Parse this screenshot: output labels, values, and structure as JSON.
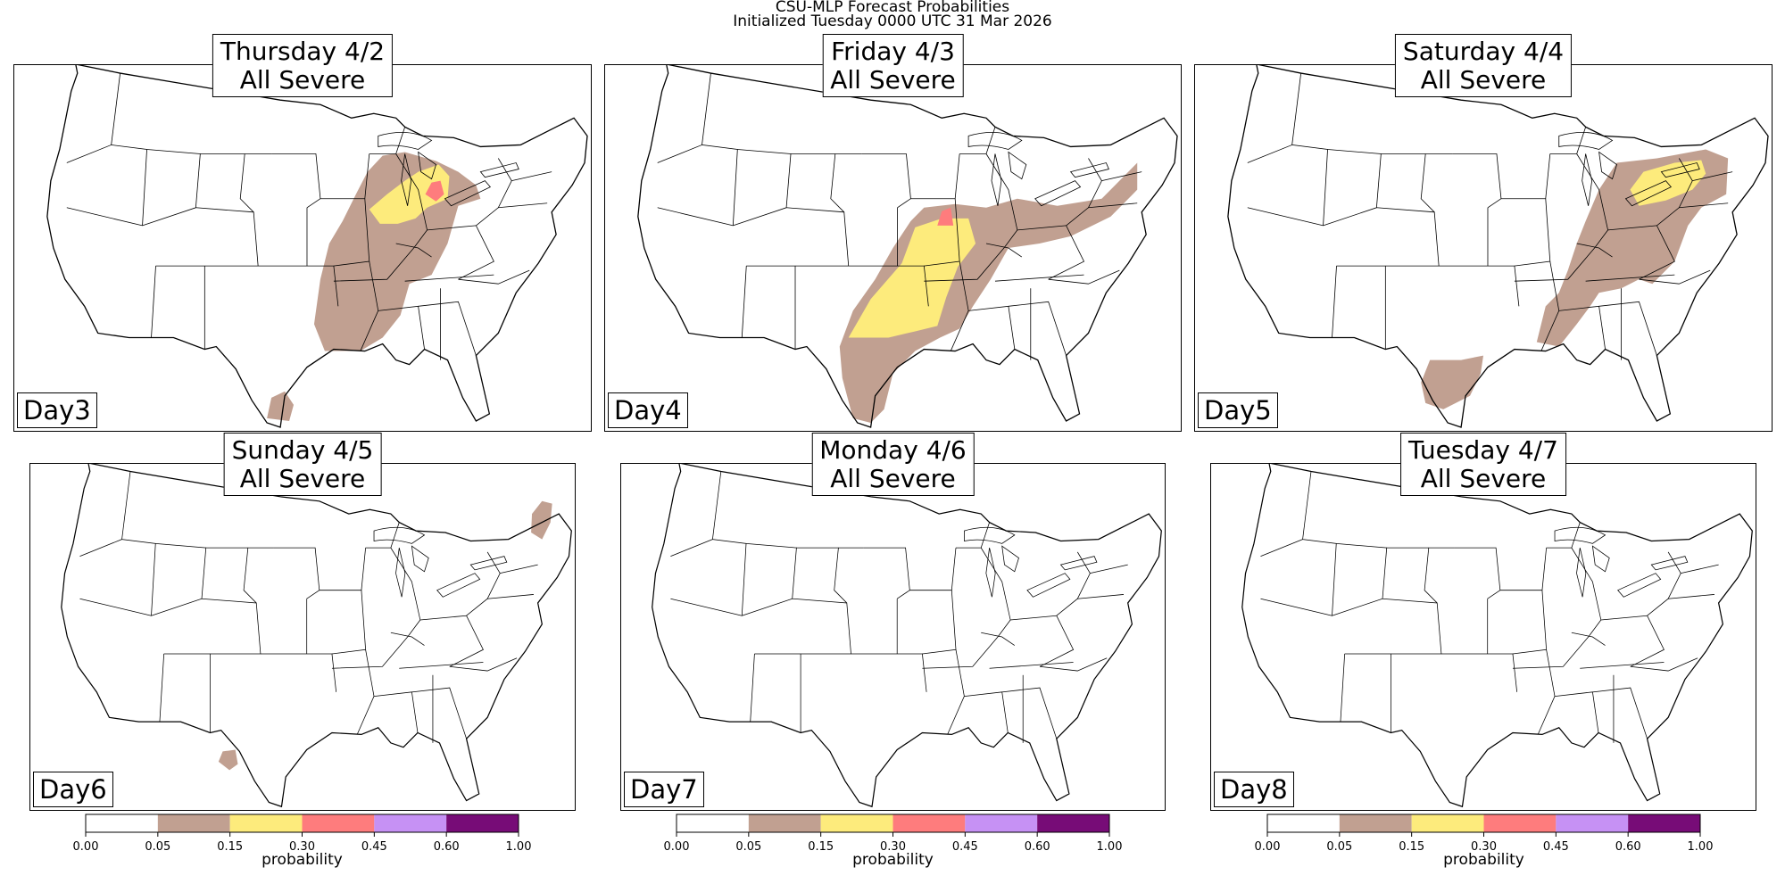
{
  "figure": {
    "title_line1": "CSU-MLP Forecast Probabilities",
    "title_line2": "Initialized Tuesday 0000 UTC 31 Mar 2026"
  },
  "panels": [
    {
      "day_label": "Day3",
      "title_line1": "Thursday 4/2",
      "title_line2": "All Severe",
      "regions": [
        {
          "name": "midwest-south",
          "category": "0.05-0.15"
        },
        {
          "name": "south-texas",
          "category": "0.05-0.15"
        },
        {
          "name": "upper-midwest",
          "category": "0.15-0.30"
        },
        {
          "name": "lower-michigan-core",
          "category": "0.30-0.45"
        }
      ]
    },
    {
      "day_label": "Day4",
      "title_line1": "Friday 4/3",
      "title_line2": "All Severe",
      "regions": [
        {
          "name": "plains-to-northeast",
          "category": "0.05-0.15"
        },
        {
          "name": "arklatex-to-illinois",
          "category": "0.15-0.30"
        },
        {
          "name": "central-illinois",
          "category": "0.30-0.45"
        }
      ]
    },
    {
      "day_label": "Day5",
      "title_line1": "Saturday 4/4",
      "title_line2": "All Severe",
      "regions": [
        {
          "name": "ohio-valley-to-northeast",
          "category": "0.05-0.15"
        },
        {
          "name": "south-texas",
          "category": "0.05-0.15"
        },
        {
          "name": "pennsylvania-ny",
          "category": "0.15-0.30"
        }
      ]
    },
    {
      "day_label": "Day6",
      "title_line1": "Sunday 4/5",
      "title_line2": "All Severe",
      "regions": [
        {
          "name": "new-england",
          "category": "0.05-0.15"
        },
        {
          "name": "south-texas",
          "category": "0.05-0.15"
        }
      ]
    },
    {
      "day_label": "Day7",
      "title_line1": "Monday 4/6",
      "title_line2": "All Severe",
      "regions": []
    },
    {
      "day_label": "Day8",
      "title_line1": "Tuesday 4/7",
      "title_line2": "All Severe",
      "regions": []
    }
  ],
  "colorbar": {
    "label": "probability",
    "ticks": [
      "0.00",
      "0.05",
      "0.15",
      "0.30",
      "0.45",
      "0.60",
      "1.00"
    ],
    "colors": [
      "#ffffff",
      "#c1a091",
      "#fdeb7c",
      "#fe7c7d",
      "#c691f4",
      "#770c77"
    ]
  }
}
